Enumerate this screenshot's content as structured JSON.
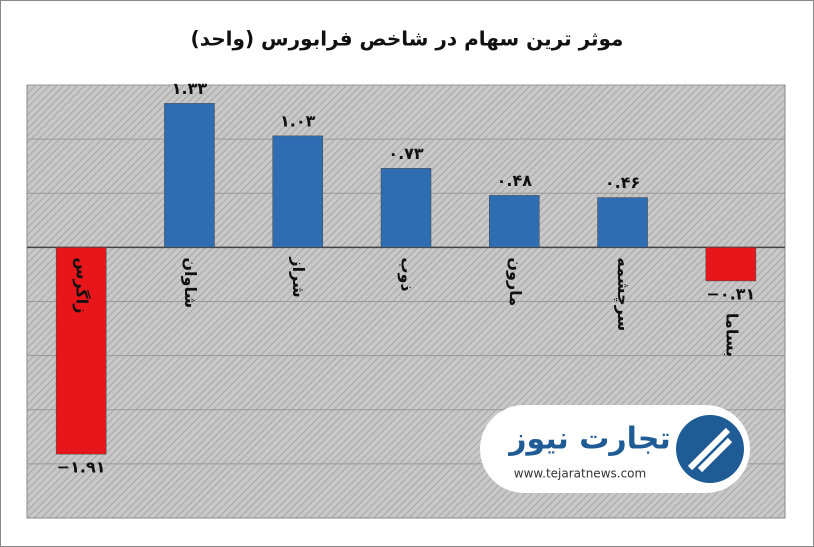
{
  "chart_data": {
    "type": "bar",
    "title": "موثر ترین سهام در شاخص فرابورس (واحد)",
    "categories": [
      "زاگرس",
      "شاوان",
      "شراز",
      "ذوب",
      "مارون",
      "سرچشمه",
      "بساما"
    ],
    "values": [
      -1.91,
      1.33,
      1.03,
      0.73,
      0.48,
      0.46,
      -0.31
    ],
    "value_labels": [
      "−۱.۹۱",
      "۱.۳۳",
      "۱.۰۳",
      "۰.۷۳",
      "۰.۴۸",
      "۰.۴۶",
      "−۰.۳۱"
    ],
    "colors": [
      "#e8161b",
      "#2f6db3",
      "#2f6db3",
      "#2f6db3",
      "#2f6db3",
      "#2f6db3",
      "#e8161b"
    ],
    "ylim": [
      -2.5,
      1.5
    ],
    "yticks": [
      -2,
      -1.5,
      -1,
      -0.5,
      0,
      0.5,
      1,
      1.5
    ],
    "grid": true
  },
  "logo": {
    "name": "تجارت نیوز",
    "url": "www.tejaratnews.com"
  }
}
